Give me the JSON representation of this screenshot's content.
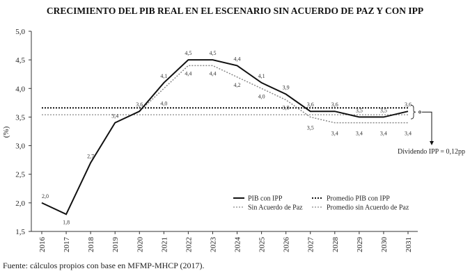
{
  "chart_data": {
    "type": "line",
    "title": "CRECIMIENTO DEL PIB REAL EN EL ESCENARIO SIN ACUERDO DE PAZ Y CON IPP",
    "ylabel": "(%)",
    "xlabel": "",
    "ylim": [
      1.5,
      5.0
    ],
    "yticks": [
      "1,5",
      "2,0",
      "2,5",
      "3,0",
      "3,5",
      "4,0",
      "4,5",
      "5,0"
    ],
    "categories": [
      "2016",
      "2017",
      "2018",
      "2019",
      "2020",
      "2021",
      "2022",
      "2023",
      "2024",
      "2025",
      "2026",
      "2027",
      "2028",
      "2029",
      "2030",
      "2031"
    ],
    "series": [
      {
        "name": "PIB con IPP",
        "style": "solid",
        "color": "#111111",
        "values": [
          2.0,
          1.8,
          2.7,
          3.4,
          3.6,
          4.1,
          4.5,
          4.5,
          4.4,
          4.1,
          3.9,
          3.6,
          3.6,
          3.5,
          3.5,
          3.6
        ],
        "labels": [
          "2,0",
          "1,8",
          "2,7",
          "3,4",
          "3,6",
          "4,1",
          "4,5",
          "4,5",
          "4,4",
          "4,1",
          "3,9",
          "3,6",
          "3,6",
          "3,5",
          "3,5",
          "3,6"
        ]
      },
      {
        "name": "Sin Acuerdo de Paz",
        "style": "dotted",
        "color": "#888888",
        "values": [
          2.0,
          1.8,
          2.7,
          3.4,
          3.6,
          4.0,
          4.4,
          4.4,
          4.2,
          4.0,
          3.8,
          3.5,
          3.4,
          3.4,
          3.4,
          3.4
        ],
        "labels": [
          "",
          "",
          "",
          "",
          "",
          "4,0",
          "4,4",
          "4,4",
          "4,2",
          "4,0",
          "3,8",
          "3,5",
          "3,4",
          "3,4",
          "3,4",
          "3,4"
        ]
      },
      {
        "name": "Promedio PIB con IPP",
        "style": "dotted-bold",
        "color": "#111111",
        "constant": 3.66
      },
      {
        "name": "Promedio sin Acuerdo de Paz",
        "style": "dotted",
        "color": "#888888",
        "constant": 3.54
      }
    ],
    "annotation": "Dividendo IPP = 0,12pp",
    "legend": "bottom-right",
    "grid": false
  },
  "source": "Fuente: cálculos propios con base en MFMP-MHCP (2017)."
}
